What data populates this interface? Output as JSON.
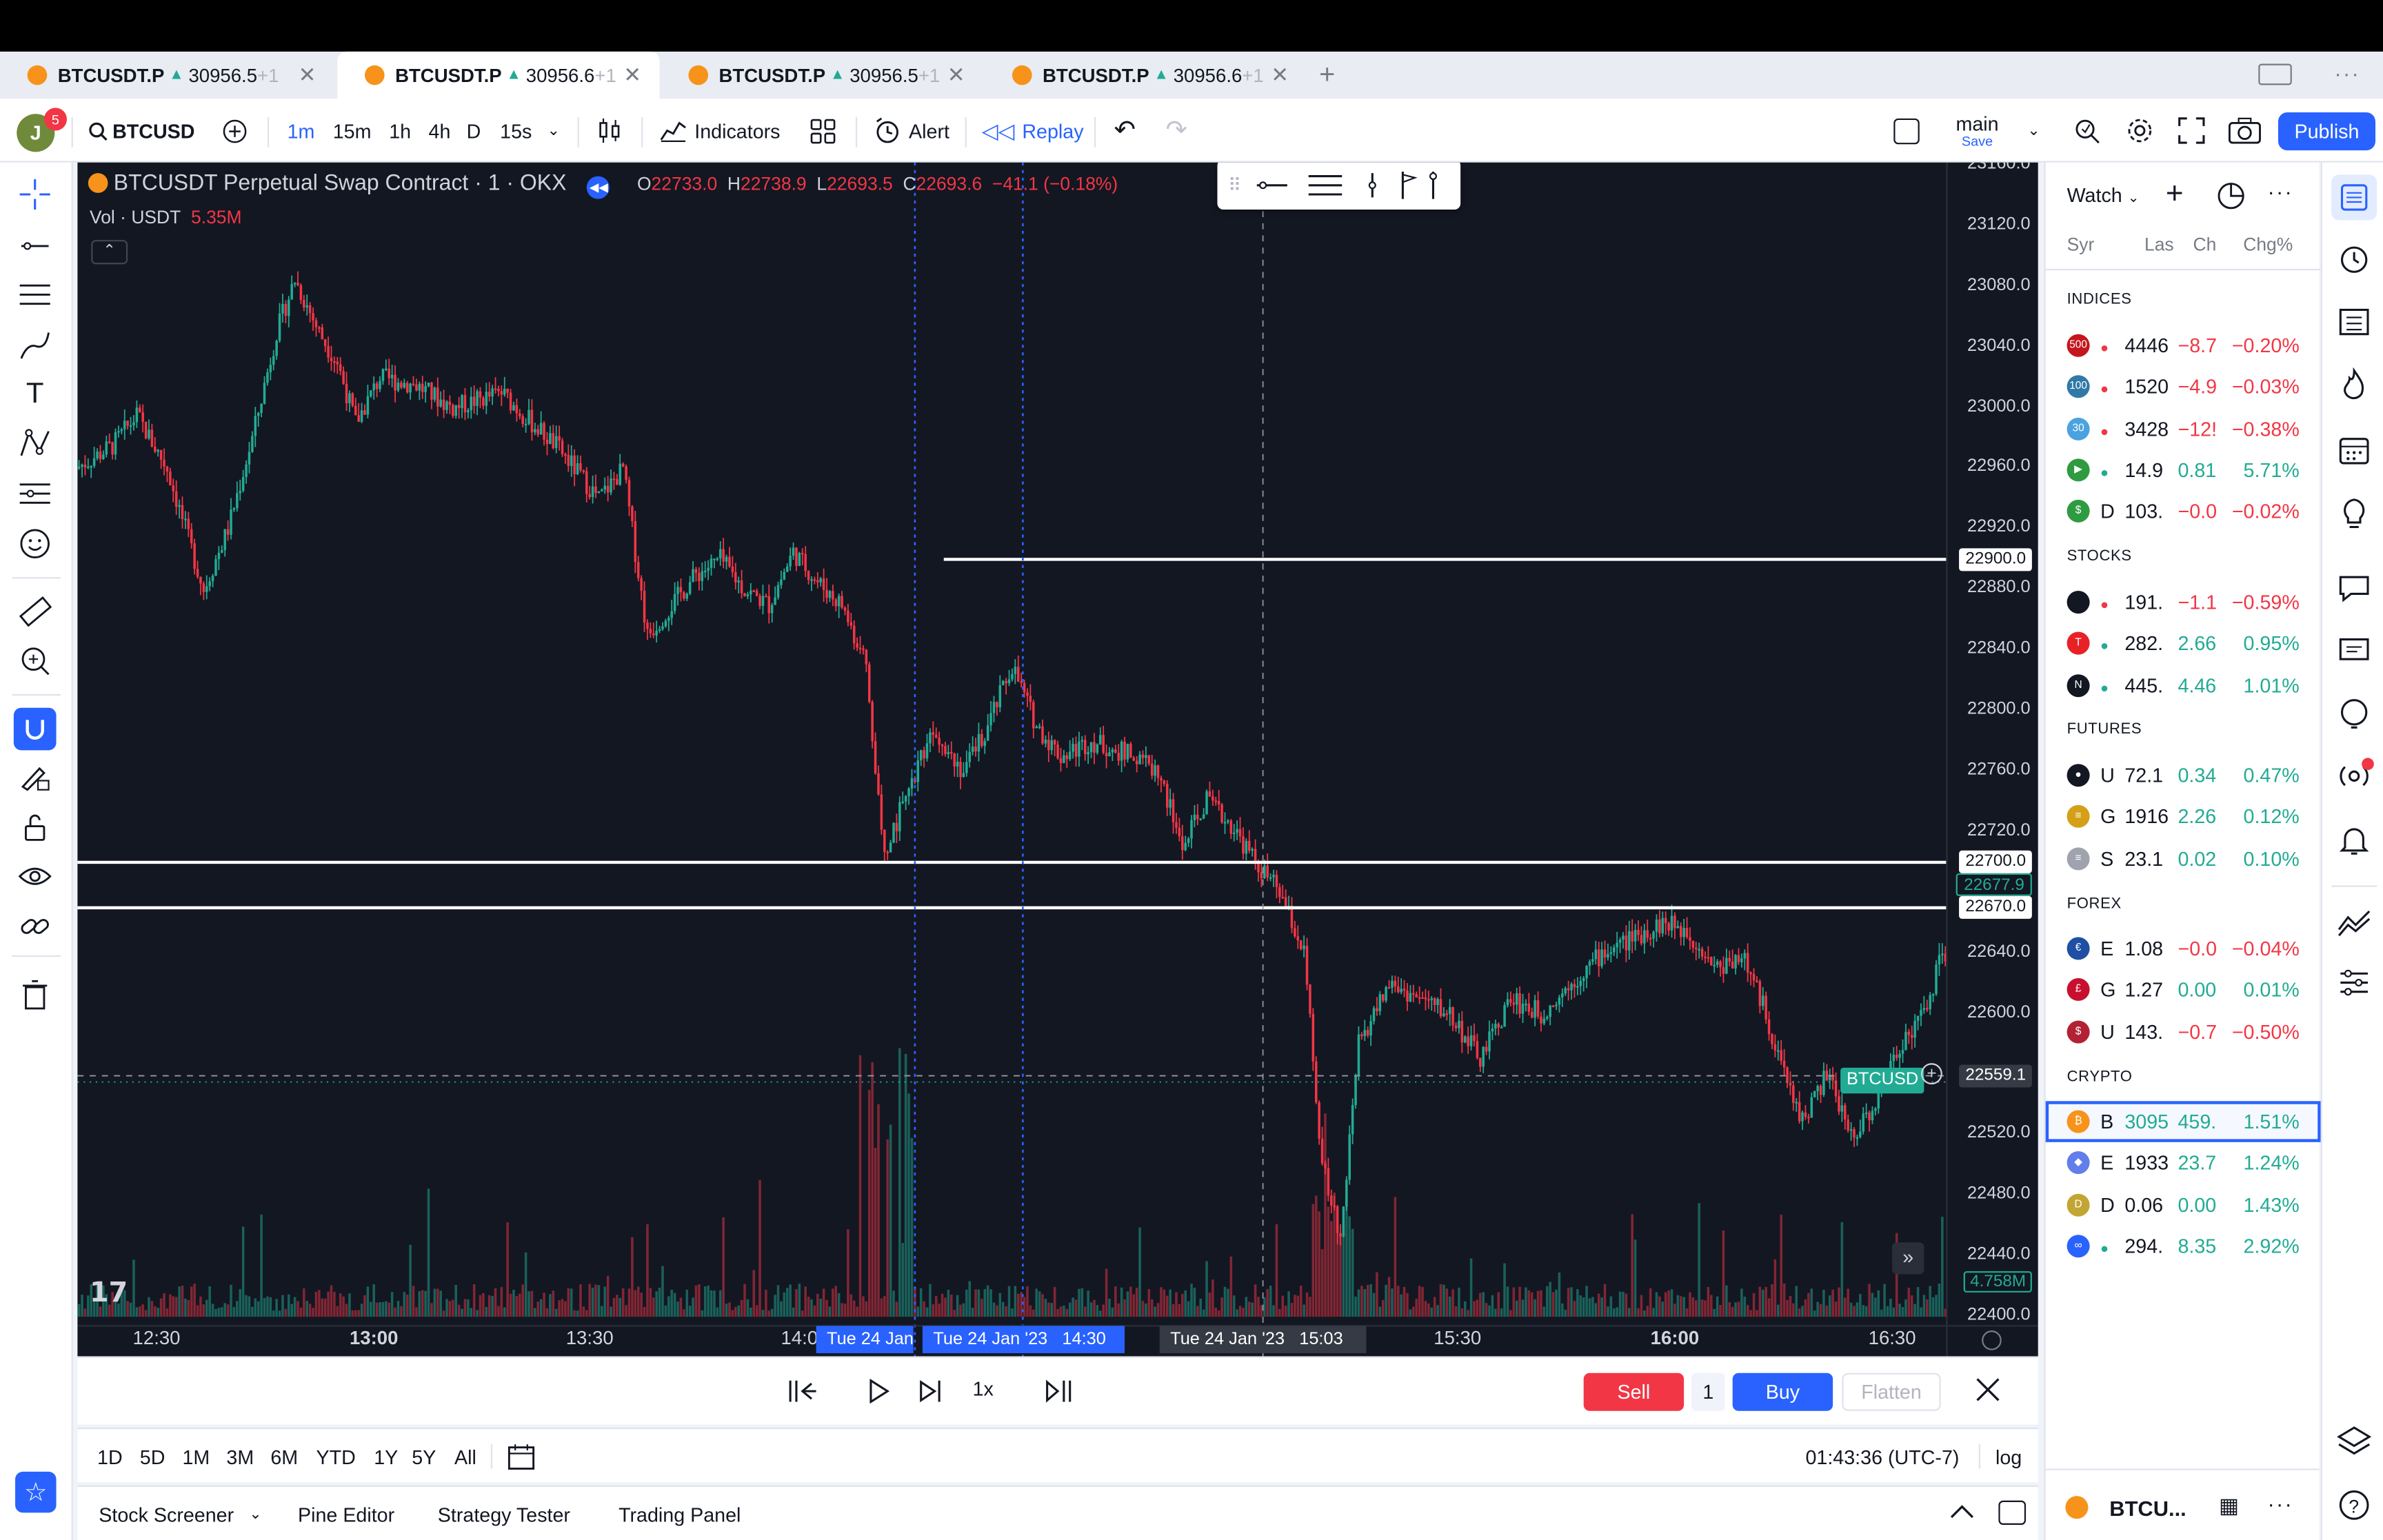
{
  "tabs": [
    {
      "symbol": "BTCUSDT.P",
      "price": "30956.5",
      "suffix": "+1"
    },
    {
      "symbol": "BTCUSDT.P",
      "price": "30956.6",
      "suffix": "+1"
    },
    {
      "symbol": "BTCUSDT.P",
      "price": "30956.5",
      "suffix": "+1"
    },
    {
      "symbol": "BTCUSDT.P",
      "price": "30956.6",
      "suffix": "+1"
    }
  ],
  "toolbar": {
    "avatar_letter": "J",
    "notif_count": "5",
    "symbol": "BTCUSD",
    "intervals": [
      "1m",
      "15m",
      "1h",
      "4h",
      "D",
      "15s"
    ],
    "indicators": "Indicators",
    "alert": "Alert",
    "replay": "Replay",
    "layout_name": "main",
    "layout_sub": "Save",
    "publish": "Publish"
  },
  "legend": {
    "title": "BTCUSDT Perpetual Swap Contract · 1 · OKX",
    "o_label": "O",
    "o": "22733.0",
    "h_label": "H",
    "h": "22738.9",
    "l_label": "L",
    "l": "22693.5",
    "c_label": "C",
    "c": "22693.6",
    "chg": "−41.1 (−0.18%)",
    "vol_label": "Vol · USDT",
    "vol": "5.35M"
  },
  "price_axis": {
    "ticks": [
      "23160.0",
      "23120.0",
      "23080.0",
      "23040.0",
      "23000.0",
      "22960.0",
      "22920.0",
      "22880.0",
      "22840.0",
      "22800.0",
      "22760.0",
      "22720.0",
      "22640.0",
      "22600.0",
      "22520.0",
      "22480.0",
      "22440.0",
      "22400.0"
    ],
    "hlines": [
      "22900.0",
      "22700.0",
      "22670.0"
    ],
    "current_marker": "22677.9",
    "cross_price": "22559.1",
    "vol_marker": "4.758M",
    "series_label": "BTCUSD"
  },
  "time_axis": {
    "ticks": [
      "12:30",
      "13:00",
      "13:30",
      "14:0",
      "15:30",
      "16:00",
      "16:30"
    ],
    "bold": [
      "13:00",
      "16:00"
    ],
    "labels": [
      "Tue 24 Jan '",
      "Tue 24 Jan '23   14:30",
      "Tue 24 Jan '23   15:03"
    ]
  },
  "replay": {
    "speed": "1x",
    "sell": "Sell",
    "qty": "1",
    "buy": "Buy",
    "flatten": "Flatten"
  },
  "ranges": [
    "1D",
    "5D",
    "1M",
    "3M",
    "6M",
    "YTD",
    "1Y",
    "5Y",
    "All"
  ],
  "clock": "01:43:36 (UTC-7)",
  "log": "log",
  "bottom_tabs": [
    "Stock Screener",
    "Pine Editor",
    "Strategy Tester",
    "Trading Panel"
  ],
  "watch": {
    "title": "Watch",
    "cols": [
      "Syr",
      "Las",
      "Ch",
      "Chg%"
    ],
    "sections": [
      {
        "name": "INDICES",
        "rows": [
          {
            "icon": "500",
            "icolor": "#c4161c",
            "sym": "",
            "last": "4446",
            "ch": "−8.7",
            "pct": "−0.20%",
            "dir": "down"
          },
          {
            "icon": "100",
            "icolor": "#3179a6",
            "sym": "",
            "last": "1520",
            "ch": "−4.9",
            "pct": "−0.03%",
            "dir": "down"
          },
          {
            "icon": "30",
            "icolor": "#4aa3df",
            "sym": "",
            "last": "3428",
            "ch": "−12!",
            "pct": "−0.38%",
            "dir": "down"
          },
          {
            "icon": "▶",
            "icolor": "#2e9b41",
            "sym": "",
            "last": "14.9",
            "ch": "0.81",
            "pct": "5.71%",
            "dir": "up"
          },
          {
            "icon": "$",
            "icolor": "#2e9b41",
            "sym": "D",
            "last": "103.",
            "ch": "−0.0",
            "pct": "−0.02%",
            "dir": "down"
          }
        ]
      },
      {
        "name": "STOCKS",
        "rows": [
          {
            "icon": "",
            "icolor": "#131722",
            "sym": "",
            "last": "191.",
            "ch": "−1.1",
            "pct": "−0.59%",
            "dir": "down"
          },
          {
            "icon": "T",
            "icolor": "#e82127",
            "sym": "",
            "last": "282.",
            "ch": "2.66",
            "pct": "0.95%",
            "dir": "up"
          },
          {
            "icon": "N",
            "icolor": "#131722",
            "sym": "",
            "last": "445.",
            "ch": "4.46",
            "pct": "1.01%",
            "dir": "up"
          }
        ]
      },
      {
        "name": "FUTURES",
        "rows": [
          {
            "icon": "●",
            "icolor": "#131722",
            "sym": "U",
            "last": "72.1",
            "ch": "0.34",
            "pct": "0.47%",
            "dir": "up"
          },
          {
            "icon": "≡",
            "icolor": "#d4a017",
            "sym": "G",
            "last": "1916",
            "ch": "2.26",
            "pct": "0.12%",
            "dir": "up"
          },
          {
            "icon": "≡",
            "icolor": "#9ea3ae",
            "sym": "S",
            "last": "23.1",
            "ch": "0.02",
            "pct": "0.10%",
            "dir": "up"
          }
        ]
      },
      {
        "name": "FOREX",
        "rows": [
          {
            "icon": "€",
            "icolor": "#1e4fa3",
            "sym": "E",
            "last": "1.08",
            "ch": "−0.0",
            "pct": "−0.04%",
            "dir": "down"
          },
          {
            "icon": "£",
            "icolor": "#c8102e",
            "sym": "G",
            "last": "1.27",
            "ch": "0.00",
            "pct": "0.01%",
            "dir": "up"
          },
          {
            "icon": "$",
            "icolor": "#b22234",
            "sym": "U",
            "last": "143.",
            "ch": "−0.7",
            "pct": "−0.50%",
            "dir": "down"
          }
        ]
      },
      {
        "name": "CRYPTO",
        "rows": [
          {
            "icon": "₿",
            "icolor": "#f7931a",
            "sym": "B",
            "last": "3095",
            "ch": "459.",
            "pct": "1.51%",
            "dir": "up",
            "selected": true
          },
          {
            "icon": "◆",
            "icolor": "#627eea",
            "sym": "E",
            "last": "1933",
            "ch": "23.7",
            "pct": "1.24%",
            "dir": "up"
          },
          {
            "icon": "D",
            "icolor": "#c2a633",
            "sym": "D",
            "last": "0.06",
            "ch": "0.00",
            "pct": "1.43%",
            "dir": "up"
          },
          {
            "icon": "∞",
            "icolor": "#2962ff",
            "sym": "",
            "last": "294.",
            "ch": "8.35",
            "pct": "2.92%",
            "dir": "up"
          }
        ]
      }
    ],
    "footer_symbol": "BTCU..."
  },
  "colors": {
    "up": "#22ab94",
    "down": "#f23645",
    "accent": "#2962ff",
    "chart_bg": "#131722"
  }
}
